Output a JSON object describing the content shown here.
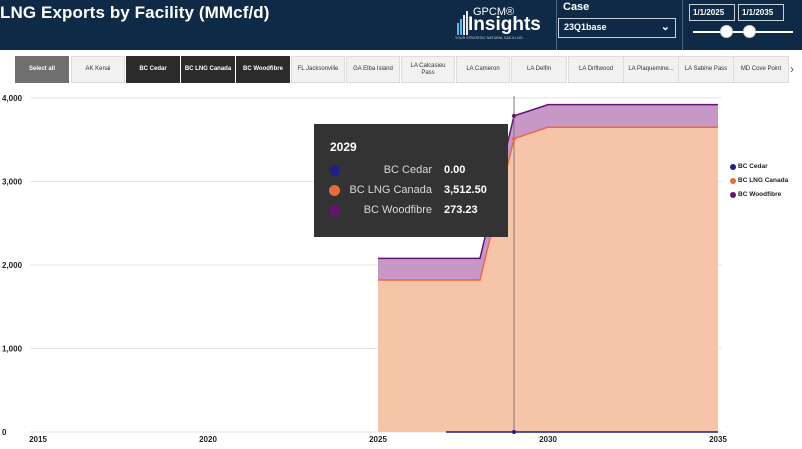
{
  "header": {
    "title": "LNG Exports by Facility (MMcf/d)",
    "logo_top": "GPCM®",
    "logo_main": "Insights",
    "logo_tagline": "YOUR STRATEGIC NATURAL GAS & LNG",
    "case_label": "Case",
    "case_value": "23Q1base",
    "date_start": "1/1/2025",
    "date_end": "1/1/2035",
    "slider_range": [
      0.32,
      0.6
    ]
  },
  "filters": {
    "select_all": "Select all",
    "items": [
      {
        "label": "AK Kenai",
        "selected": false
      },
      {
        "label": "BC Cedar",
        "selected": true
      },
      {
        "label": "BC LNG Canada",
        "selected": true
      },
      {
        "label": "BC Woodfibre",
        "selected": true
      },
      {
        "label": "FL Jacksonville",
        "selected": false
      },
      {
        "label": "GA Elba Island",
        "selected": false
      },
      {
        "label": "LA Calcasieu Pass",
        "selected": false
      },
      {
        "label": "LA Cameron",
        "selected": false
      },
      {
        "label": "LA Delfin",
        "selected": false
      },
      {
        "label": "LA Driftwood",
        "selected": false
      },
      {
        "label": "LA Plaquemine...",
        "selected": false
      },
      {
        "label": "LA Sabine Pass",
        "selected": false
      },
      {
        "label": "MD Cove Point",
        "selected": false
      }
    ]
  },
  "colors": {
    "BC Cedar": "#1f1f8a",
    "BC LNG Canada": "#ea6b39",
    "BC LNG Canada fill": "#f6c4a8",
    "BC Woodfibre": "#6a1178",
    "BC Woodfibre fill": "#c798c6"
  },
  "chart_data": {
    "type": "area",
    "stacked": true,
    "x": [
      2025,
      2026,
      2027,
      2028,
      2029,
      2030,
      2031,
      2032,
      2033,
      2034,
      2035
    ],
    "series": [
      {
        "name": "BC Cedar",
        "values": [
          0,
          0,
          0,
          0,
          0,
          0,
          0,
          0,
          0,
          0,
          0
        ],
        "start": 2027
      },
      {
        "name": "BC LNG Canada",
        "values": [
          1820,
          1820,
          1820,
          1820,
          3512.5,
          3650,
          3650,
          3650,
          3650,
          3650,
          3650
        ]
      },
      {
        "name": "BC Woodfibre",
        "values": [
          260,
          260,
          260,
          260,
          273.23,
          270,
          270,
          270,
          270,
          270,
          270
        ]
      }
    ],
    "xlim": [
      2015,
      2035
    ],
    "ylim": [
      0,
      4000
    ],
    "y_ticks": [
      "0",
      "1,000",
      "2,000",
      "3,000",
      "4,000"
    ],
    "x_ticks": [
      "2015",
      "2020",
      "2025",
      "2030",
      "2035"
    ],
    "grid": true,
    "legend_position": "right",
    "hover_x": 2029
  },
  "tooltip": {
    "title": "2029",
    "rows": [
      {
        "name": "BC Cedar",
        "value": "0.00"
      },
      {
        "name": "BC LNG Canada",
        "value": "3,512.50"
      },
      {
        "name": "BC Woodfibre",
        "value": "273.23"
      }
    ]
  },
  "legend": [
    "BC Cedar",
    "BC LNG Canada",
    "BC Woodfibre"
  ]
}
